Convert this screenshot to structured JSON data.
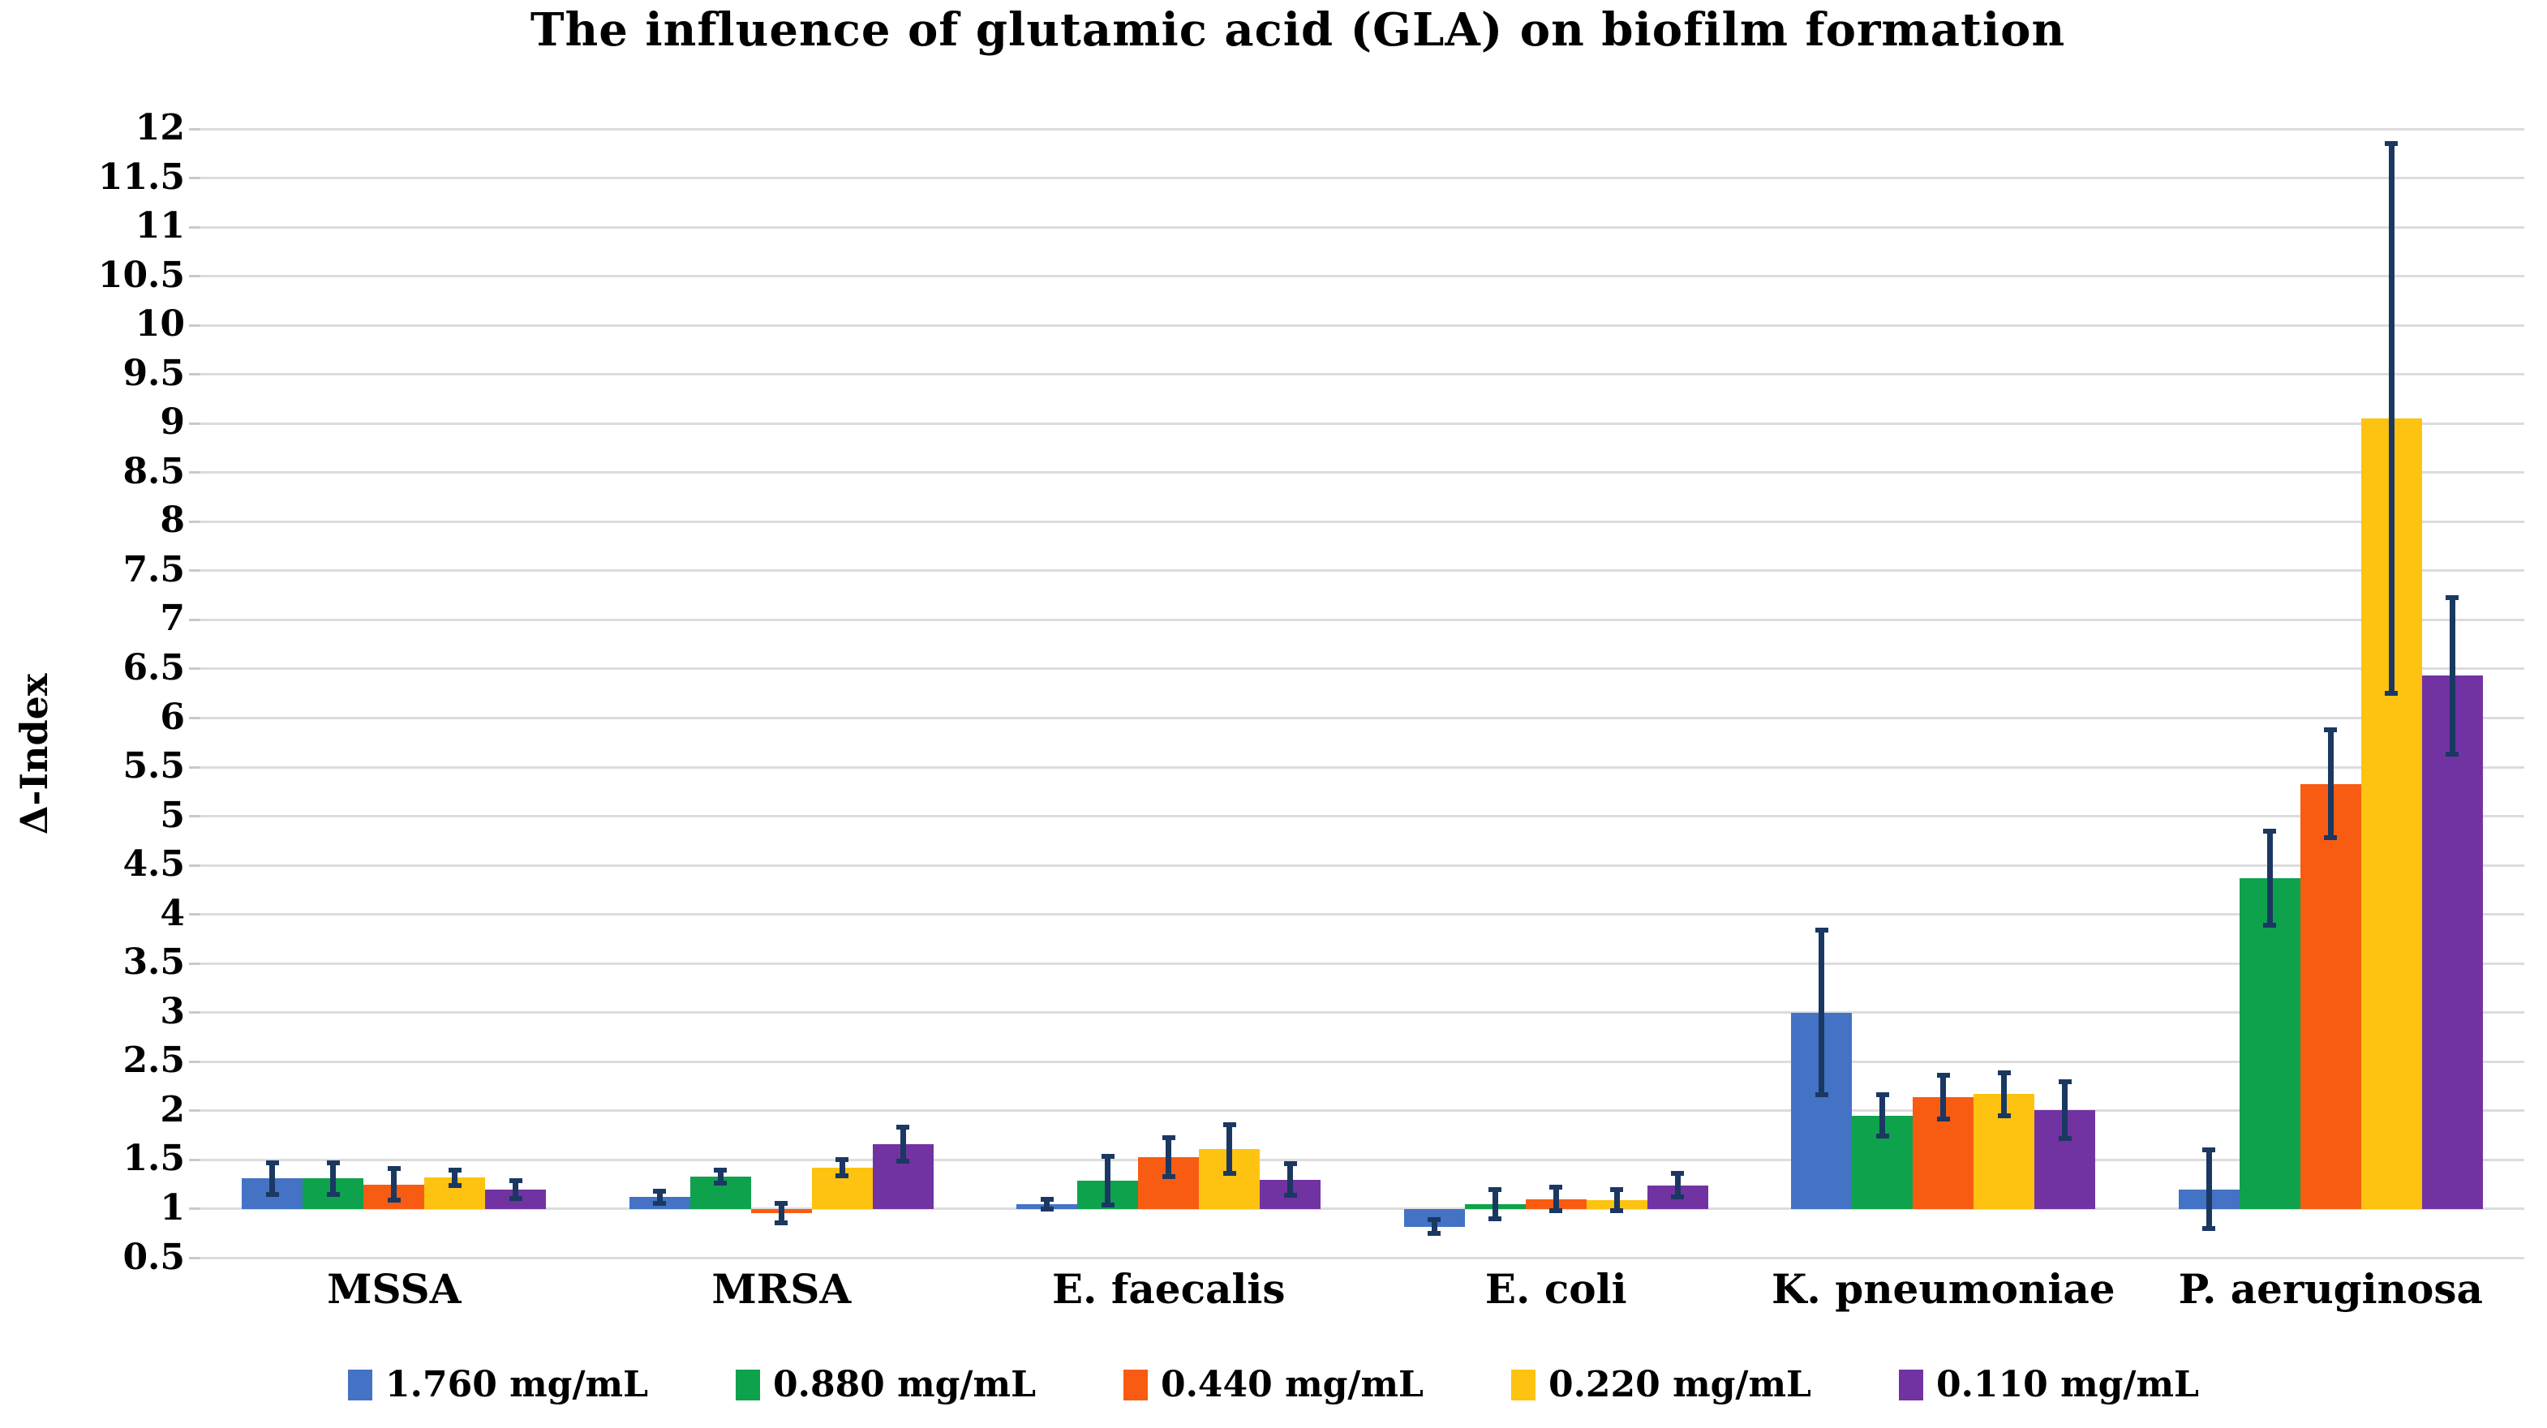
{
  "title": "The influence of glutamic acid (GLA) on biofilm formation",
  "colors": {
    "series_blue": "#4472C4",
    "series_green": "#0EA24D",
    "series_orange": "#F85C12",
    "series_yellow": "#FEC310",
    "series_purple": "#7233A2",
    "error_bar": "#1A3862",
    "gridline": "#DCDCDC",
    "tick": "#C9C9C9",
    "text": "#000000",
    "background": "#FFFFFF"
  },
  "chart_data": {
    "type": "bar",
    "title": "The influence of glutamic acid (GLA) on biofilm formation",
    "xlabel": "",
    "ylabel": "Δ-Index",
    "ylim": [
      0.5,
      12
    ],
    "ytick_step": 0.5,
    "bar_base": 1.0,
    "grid": true,
    "legend_position": "bottom",
    "error_bars": true,
    "categories": [
      "MSSA",
      "MRSA",
      "E. faecalis",
      "E. coli",
      "K. pneumoniae",
      "P. aeruginosa"
    ],
    "series": [
      {
        "name": "1.760 mg/mL",
        "color": "#4472C4",
        "values": [
          1.31,
          1.12,
          1.05,
          0.82,
          3.0,
          1.2
        ],
        "errors": [
          0.16,
          0.06,
          0.05,
          0.07,
          0.84,
          0.4
        ]
      },
      {
        "name": "0.880 mg/mL",
        "color": "#0EA24D",
        "values": [
          1.31,
          1.33,
          1.29,
          1.05,
          1.95,
          4.37
        ],
        "errors": [
          0.16,
          0.07,
          0.25,
          0.15,
          0.21,
          0.48
        ]
      },
      {
        "name": "0.440 mg/mL",
        "color": "#F85C12",
        "values": [
          1.25,
          0.96,
          1.53,
          1.1,
          2.14,
          5.33
        ],
        "errors": [
          0.16,
          0.1,
          0.2,
          0.12,
          0.22,
          0.55
        ]
      },
      {
        "name": "0.220 mg/mL",
        "color": "#FEC310",
        "values": [
          1.32,
          1.42,
          1.61,
          1.09,
          2.17,
          9.05
        ],
        "errors": [
          0.08,
          0.08,
          0.25,
          0.11,
          0.22,
          2.8
        ]
      },
      {
        "name": "0.110 mg/mL",
        "color": "#7233A2",
        "values": [
          1.2,
          1.66,
          1.3,
          1.24,
          2.01,
          6.43
        ],
        "errors": [
          0.09,
          0.17,
          0.16,
          0.12,
          0.29,
          0.8
        ]
      }
    ]
  }
}
